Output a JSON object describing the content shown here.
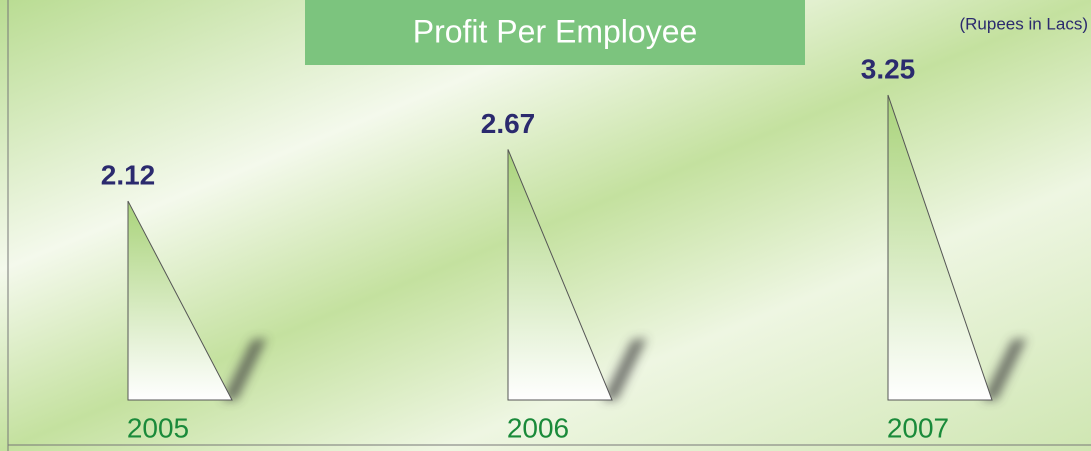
{
  "chart_data": {
    "type": "bar",
    "title": "Profit Per Employee",
    "subtitle": "(Rupees in Lacs)",
    "categories": [
      "2005",
      "2006",
      "2007"
    ],
    "values": [
      2.12,
      2.67,
      3.25
    ],
    "color": "#a9d37a"
  }
}
